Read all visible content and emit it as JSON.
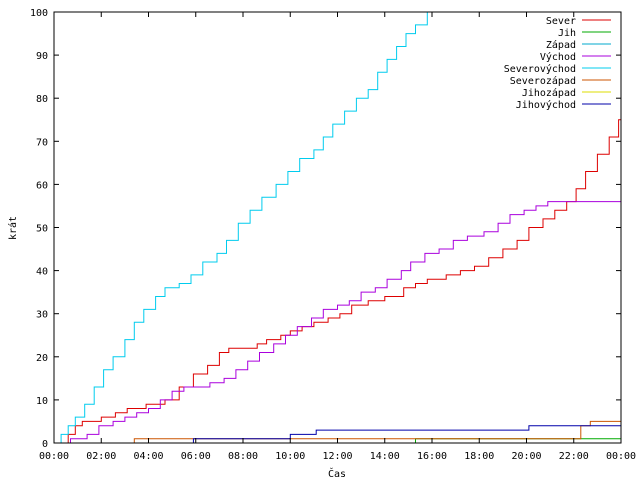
{
  "chart_data": {
    "type": "line",
    "xlabel": "Čas",
    "ylabel": "krát",
    "ylim": [
      0,
      100
    ],
    "xlim_hours": [
      0,
      24
    ],
    "grid": false,
    "legend_position": "top-right",
    "x_ticks": [
      "00:00",
      "02:00",
      "04:00",
      "06:00",
      "08:00",
      "10:00",
      "12:00",
      "14:00",
      "16:00",
      "18:00",
      "20:00",
      "22:00",
      "00:00"
    ],
    "y_ticks": [
      "0",
      "10",
      "20",
      "30",
      "40",
      "50",
      "60",
      "70",
      "80",
      "90",
      "100"
    ],
    "series": [
      {
        "name": "Sever",
        "color": "#dd0000",
        "points": [
          [
            0,
            0
          ],
          [
            0.6,
            2
          ],
          [
            0.9,
            4
          ],
          [
            1.2,
            5
          ],
          [
            2,
            6
          ],
          [
            2.6,
            7
          ],
          [
            3.1,
            8
          ],
          [
            3.9,
            9
          ],
          [
            4.7,
            10
          ],
          [
            5.3,
            13
          ],
          [
            5.9,
            16
          ],
          [
            6.5,
            18
          ],
          [
            7.0,
            21
          ],
          [
            7.4,
            22
          ],
          [
            8.0,
            22
          ],
          [
            8.6,
            23
          ],
          [
            9.0,
            24
          ],
          [
            9.6,
            25
          ],
          [
            10.0,
            26
          ],
          [
            10.5,
            27
          ],
          [
            11.0,
            28
          ],
          [
            11.6,
            29
          ],
          [
            12.1,
            30
          ],
          [
            12.6,
            32
          ],
          [
            13.3,
            33
          ],
          [
            14.0,
            34
          ],
          [
            14.8,
            36
          ],
          [
            15.3,
            37
          ],
          [
            15.8,
            38
          ],
          [
            16.6,
            39
          ],
          [
            17.2,
            40
          ],
          [
            17.8,
            41
          ],
          [
            18.4,
            43
          ],
          [
            19.0,
            45
          ],
          [
            19.6,
            47
          ],
          [
            20.1,
            50
          ],
          [
            20.7,
            52
          ],
          [
            21.2,
            54
          ],
          [
            21.7,
            56
          ],
          [
            22.1,
            59
          ],
          [
            22.5,
            63
          ],
          [
            23.0,
            67
          ],
          [
            23.5,
            71
          ],
          [
            23.9,
            75
          ],
          [
            24,
            75
          ]
        ]
      },
      {
        "name": "Jih",
        "color": "#00aa00",
        "points": [
          [
            0,
            0
          ],
          [
            15.2,
            0
          ],
          [
            15.3,
            1
          ],
          [
            24,
            1
          ]
        ]
      },
      {
        "name": "Západ",
        "color": "#00aacc",
        "points": []
      },
      {
        "name": "Východ",
        "color": "#aa00dd",
        "points": [
          [
            0,
            0
          ],
          [
            0.7,
            1
          ],
          [
            1.4,
            2
          ],
          [
            1.9,
            4
          ],
          [
            2.5,
            5
          ],
          [
            3.0,
            6
          ],
          [
            3.5,
            7
          ],
          [
            4.0,
            8
          ],
          [
            4.5,
            10
          ],
          [
            5.0,
            12
          ],
          [
            5.5,
            13
          ],
          [
            6.1,
            13
          ],
          [
            6.6,
            14
          ],
          [
            7.2,
            15
          ],
          [
            7.7,
            17
          ],
          [
            8.2,
            19
          ],
          [
            8.7,
            21
          ],
          [
            9.3,
            23
          ],
          [
            9.8,
            25
          ],
          [
            10.3,
            27
          ],
          [
            10.9,
            29
          ],
          [
            11.4,
            31
          ],
          [
            12.0,
            32
          ],
          [
            12.5,
            33
          ],
          [
            13.0,
            35
          ],
          [
            13.6,
            36
          ],
          [
            14.1,
            38
          ],
          [
            14.7,
            40
          ],
          [
            15.1,
            42
          ],
          [
            15.7,
            44
          ],
          [
            16.3,
            45
          ],
          [
            16.9,
            47
          ],
          [
            17.5,
            48
          ],
          [
            18.2,
            49
          ],
          [
            18.8,
            51
          ],
          [
            19.3,
            53
          ],
          [
            19.9,
            54
          ],
          [
            20.4,
            55
          ],
          [
            20.9,
            56
          ],
          [
            24,
            56
          ]
        ]
      },
      {
        "name": "Severovýchod",
        "color": "#00ccee",
        "points": [
          [
            0,
            0
          ],
          [
            0.3,
            2
          ],
          [
            0.6,
            4
          ],
          [
            0.9,
            6
          ],
          [
            1.3,
            9
          ],
          [
            1.7,
            13
          ],
          [
            2.1,
            17
          ],
          [
            2.5,
            20
          ],
          [
            3.0,
            24
          ],
          [
            3.4,
            28
          ],
          [
            3.8,
            31
          ],
          [
            4.3,
            34
          ],
          [
            4.7,
            36
          ],
          [
            5.3,
            37
          ],
          [
            5.8,
            39
          ],
          [
            6.3,
            42
          ],
          [
            6.9,
            44
          ],
          [
            7.3,
            47
          ],
          [
            7.8,
            51
          ],
          [
            8.3,
            54
          ],
          [
            8.8,
            57
          ],
          [
            9.4,
            60
          ],
          [
            9.9,
            63
          ],
          [
            10.4,
            66
          ],
          [
            11.0,
            68
          ],
          [
            11.4,
            71
          ],
          [
            11.8,
            74
          ],
          [
            12.3,
            77
          ],
          [
            12.8,
            80
          ],
          [
            13.3,
            82
          ],
          [
            13.7,
            86
          ],
          [
            14.1,
            89
          ],
          [
            14.5,
            92
          ],
          [
            14.9,
            95
          ],
          [
            15.3,
            97
          ],
          [
            15.8,
            100
          ]
        ]
      },
      {
        "name": "Severozápad",
        "color": "#cc5500",
        "points": [
          [
            0,
            0
          ],
          [
            3.3,
            0
          ],
          [
            3.4,
            1
          ],
          [
            22.0,
            1
          ],
          [
            22.3,
            4
          ],
          [
            22.7,
            5
          ],
          [
            24,
            5
          ]
        ]
      },
      {
        "name": "Jihozápad",
        "color": "#dddd00",
        "points": []
      },
      {
        "name": "Jihovýchod",
        "color": "#0000aa",
        "points": [
          [
            0,
            0
          ],
          [
            5.8,
            0
          ],
          [
            5.9,
            1
          ],
          [
            9.9,
            1
          ],
          [
            10.0,
            2
          ],
          [
            11.0,
            2
          ],
          [
            11.1,
            3
          ],
          [
            20.0,
            3
          ],
          [
            20.1,
            4
          ],
          [
            24,
            4
          ]
        ]
      }
    ]
  }
}
